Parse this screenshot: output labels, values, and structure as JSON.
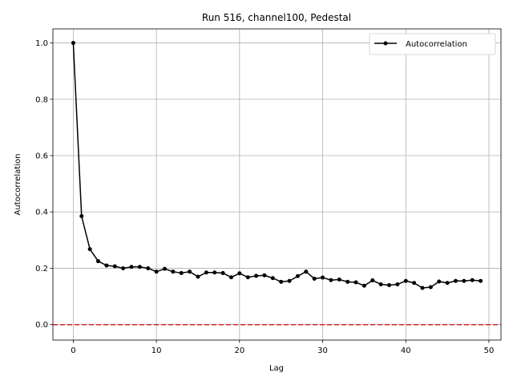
{
  "chart_data": {
    "type": "line",
    "title": "Run 516, channel100, Pedestal",
    "xlabel": "Lag",
    "ylabel": "Autocorrelation",
    "xlim": [
      -2.45,
      51.45
    ],
    "ylim": [
      -0.055,
      1.05
    ],
    "xticks": [
      0,
      10,
      20,
      30,
      40,
      50
    ],
    "yticks": [
      0.0,
      0.2,
      0.4,
      0.6,
      0.8,
      1.0
    ],
    "xtick_labels": [
      "0",
      "10",
      "20",
      "30",
      "40",
      "50"
    ],
    "ytick_labels": [
      "0.0",
      "0.2",
      "0.4",
      "0.6",
      "0.8",
      "1.0"
    ],
    "grid": true,
    "legend": {
      "placement": "top-right",
      "entries": [
        "Autocorrelation"
      ]
    },
    "reference_line": {
      "y": 0.0,
      "color": "#d62728",
      "style": "dashed"
    },
    "series": [
      {
        "name": "Autocorrelation",
        "color": "#000000",
        "marker": "circle",
        "x": [
          0,
          1,
          2,
          3,
          4,
          5,
          6,
          7,
          8,
          9,
          10,
          11,
          12,
          13,
          14,
          15,
          16,
          17,
          18,
          19,
          20,
          21,
          22,
          23,
          24,
          25,
          26,
          27,
          28,
          29,
          30,
          31,
          32,
          33,
          34,
          35,
          36,
          37,
          38,
          39,
          40,
          41,
          42,
          43,
          44,
          45,
          46,
          47,
          48,
          49
        ],
        "values": [
          1.0,
          0.385,
          0.268,
          0.225,
          0.21,
          0.207,
          0.2,
          0.205,
          0.205,
          0.2,
          0.188,
          0.198,
          0.188,
          0.183,
          0.188,
          0.17,
          0.185,
          0.185,
          0.183,
          0.168,
          0.182,
          0.168,
          0.173,
          0.175,
          0.165,
          0.152,
          0.155,
          0.172,
          0.188,
          0.163,
          0.167,
          0.158,
          0.16,
          0.152,
          0.15,
          0.138,
          0.157,
          0.143,
          0.14,
          0.143,
          0.155,
          0.148,
          0.13,
          0.133,
          0.153,
          0.148,
          0.155,
          0.155,
          0.158,
          0.155
        ]
      }
    ]
  }
}
